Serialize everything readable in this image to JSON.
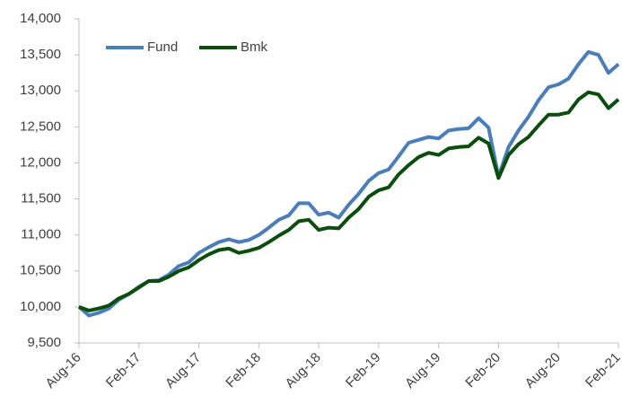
{
  "chart_data": {
    "type": "line",
    "categories": [
      "Aug-16",
      null,
      null,
      null,
      null,
      null,
      "Feb-17",
      null,
      null,
      null,
      null,
      null,
      "Aug-17",
      null,
      null,
      null,
      null,
      null,
      "Feb-18",
      null,
      null,
      null,
      null,
      null,
      "Aug-18",
      null,
      null,
      null,
      null,
      null,
      "Feb-19",
      null,
      null,
      null,
      null,
      null,
      "Aug-19",
      null,
      null,
      null,
      null,
      null,
      "Feb-20",
      null,
      null,
      null,
      null,
      null,
      "Aug-20",
      null,
      null,
      null,
      null,
      null,
      "Feb-21"
    ],
    "series": [
      {
        "name": "Fund",
        "color": "#4a7ebb",
        "values": [
          10000,
          9880,
          9920,
          9980,
          10100,
          10180,
          10280,
          10360,
          10370,
          10450,
          10570,
          10620,
          10750,
          10830,
          10900,
          10940,
          10900,
          10930,
          11000,
          11100,
          11210,
          11270,
          11440,
          11440,
          11280,
          11310,
          11240,
          11420,
          11570,
          11750,
          11860,
          11910,
          12090,
          12280,
          12320,
          12360,
          12340,
          12450,
          12470,
          12480,
          12620,
          12490,
          11810,
          12220,
          12450,
          12640,
          12870,
          13050,
          13090,
          13170,
          13370,
          13540,
          13500,
          13250,
          13370
        ]
      },
      {
        "name": "Bmk",
        "color": "#0b4d0b",
        "values": [
          10000,
          9950,
          9980,
          10020,
          10120,
          10180,
          10270,
          10360,
          10360,
          10420,
          10500,
          10550,
          10650,
          10730,
          10790,
          10810,
          10750,
          10780,
          10820,
          10900,
          10990,
          11070,
          11190,
          11210,
          11070,
          11100,
          11090,
          11240,
          11360,
          11530,
          11620,
          11660,
          11840,
          11970,
          12080,
          12140,
          12110,
          12200,
          12220,
          12230,
          12350,
          12270,
          11790,
          12110,
          12260,
          12360,
          12520,
          12670,
          12670,
          12700,
          12880,
          12980,
          12950,
          12760,
          12880
        ]
      }
    ],
    "ylim": [
      9500,
      14000
    ],
    "yticks": [
      {
        "value": 9500,
        "label": "9,500"
      },
      {
        "value": 10000,
        "label": "10,000"
      },
      {
        "value": 10500,
        "label": "10,500"
      },
      {
        "value": 11000,
        "label": "11,000"
      },
      {
        "value": 11500,
        "label": "11,500"
      },
      {
        "value": 12000,
        "label": "12,000"
      },
      {
        "value": 12500,
        "label": "12,500"
      },
      {
        "value": 13000,
        "label": "13,000"
      },
      {
        "value": 13500,
        "label": "13,500"
      },
      {
        "value": 14000,
        "label": "14,000"
      }
    ],
    "grid": false,
    "legend": "top-left"
  }
}
